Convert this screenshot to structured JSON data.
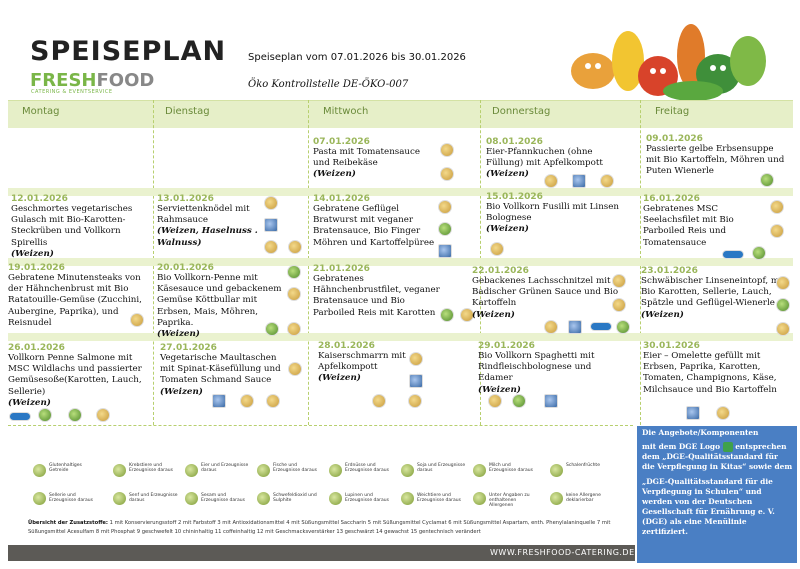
{
  "header": {
    "title": "SPEISEPLAN",
    "brand_fresh": "FRESH",
    "brand_food": "FOOD",
    "brand_sub": "CATERING & EVENTSERVICE",
    "period": "Speiseplan vom 07.01.2026 bis 30.01.2026",
    "eco": "Öko Kontrollstelle DE-ÖKO-007"
  },
  "days": [
    "Montag",
    "Dienstag",
    "Mittwoch",
    "Donnerstag",
    "Freitag"
  ],
  "week1": {
    "wed": {
      "date": "07.01.2026",
      "text": "Pasta mit Tomatensauce und Reibekäse",
      "tag": "(Weizen)"
    },
    "thu": {
      "date": "08.01.2026",
      "text": "Eier-Pfannkuchen (ohne Füllung) mit Apfelkompott",
      "tag": "(Weizen)"
    },
    "fri": {
      "date": "09.01.2026",
      "text": "Passierte gelbe Erbsensuppe mit Bio Kartoffeln, Möhren und  Puten Wienerle",
      "tag": ""
    }
  },
  "week2": {
    "mon": {
      "date": "12.01.2026",
      "text": "Geschmortes vegetarisches Gulasch mit Bio-Karotten-Steckrüben und Vollkorn Spirellis",
      "tag": "(Weizen)"
    },
    "tue": {
      "date": "13.01.2026",
      "text": "Serviettenknödel mit Rahmsauce",
      "tag": "(Weizen, Haselnuss . Walnuss)"
    },
    "wed": {
      "date": "14.01.2026",
      "text": "Gebratene Geflügel Bratwurst mit veganer Bratensauce, Bio Finger Möhren und Kartoffelpüree",
      "tag": ""
    },
    "thu": {
      "date": "15.01.2026",
      "text": "Bio Vollkorn Fusilli mit Linsen Bolognese",
      "tag": "(Weizen)"
    },
    "fri": {
      "date": "16.01.2026",
      "text": "Gebratenes MSC Seelachsfilet mit Bio Parboiled Reis und Tomatensauce",
      "tag": ""
    }
  },
  "week3": {
    "mon": {
      "date": "19.01.2026",
      "text": "Gebratene Minutensteaks von der Hähnchenbrust mit Bio Ratatouille-Gemüse (Zucchini, Aubergine, Paprika),  und Reisnudel",
      "tag": ""
    },
    "tue": {
      "date": "20.01.2026",
      "text": "Bio Vollkorn-Penne mit Käsesauce und gebackenem Gemüse Köttbullar mit Erbsen, Mais, Möhren, Paprika.",
      "tag": "(Weizen)"
    },
    "wed": {
      "date": "21.01.2026",
      "text": "Gebratenes  Hähnchenbrustfilet, veganer Bratensauce und Bio Parboiled Reis mit  Karotten",
      "tag": ""
    },
    "thu": {
      "date": "22.01.2026",
      "text": "Gebackenes  Lachsschnitzel mit Badischer Grünen Sauce und Bio Kartoffeln",
      "tag": "(Weizen)"
    },
    "fri": {
      "date": "23.01.2026",
      "text": "Schwäbischer Linseneintopf, mit Bio Karotten, Sellerie, Lauch, Spätzle und Geflügel-Wienerle",
      "tag": "(Weizen)"
    }
  },
  "week4": {
    "mon": {
      "date": "26.01.2026",
      "text": "Vollkorn Penne Salmone mit MSC Wildlachs und passierter Gemüsesoße(Karotten, Lauch, Sellerie)",
      "tag": "(Weizen)"
    },
    "tue": {
      "date": "27.01.2026",
      "text": "Vegetarische Maultaschen mit Spinat-Käsefüllung und Tomaten Schmand Sauce",
      "tag": "(Weizen)"
    },
    "wed": {
      "date": "28.01.2026",
      "text": "Kaiserschmarrn mit Apfelkompott",
      "tag": "(Weizen)"
    },
    "thu": {
      "date": "29.01.2026",
      "text": "Bio  Vollkorn Spaghetti mit Rindfleischbolognese und Edamer",
      "tag": "(Weizen)"
    },
    "fri": {
      "date": "30.01.2026",
      "text": "Eier – Omelette gefüllt mit Erbsen, Paprika, Karotten, Tomaten, Champignons, Käse, Milchsauce und Bio Kartoffeln",
      "tag": ""
    }
  },
  "legend": [
    "Glutenhaltiges Getreide",
    "Krebstiere und Erzeugnisse daraus",
    "Eier und Erzeugnisse daraus",
    "Fische und Erzeugnisse daraus",
    "Erdnüsse und Erzeugnisse daraus",
    "Soja und Erzeugnisse daraus",
    "Milch und Erzeugnisse daraus",
    "Schalenfrüchte",
    "Sellerie und Erzeugnisse daraus",
    "Senf und Erzeugnisse daraus",
    "Sesam und Erzeugnisse daraus",
    "Schwefeldioxid und Sulphite",
    "Lupinen und Erzeugnisse daraus",
    "Weichtiere und Erzeugnisse daraus",
    "Unter Angaben zu enthaltenen Allergenen",
    "keine Allergene deklarierbar"
  ],
  "additives": {
    "label": "Übersicht der Zusatzstoffe:",
    "text": "1 mit Konservierungsstoff 2 mit Farbstoff 3 mit Antioxidationsmittel 4 mit Süßungsmittel Saccharin 5 mit Süßungsmittel Cyclamat 6 mit Süßungsmittel Aspartam, enth. Phenylalaninquelle 7 mit Süßungsmittel Acesulfam 8 mit Phosphat 9 geschwefelt 10 chininhaltig 11 coffeinhaltig 12 mit Geschmacksverstärker 13 geschwärzt 14 gewachst 15 gentechnisch verändert"
  },
  "footer": {
    "url": "WWW.FRESHFOOD-CATERING.DE"
  },
  "dge": {
    "line1": "Die Angebote/Komponenten",
    "line2a": "mit dem DGE Logo",
    "line2b": "entsprechen dem „DGE-Qualitätsstandard für die Verpflegung in Kitas“ sowie  dem",
    "line3": "„DGE-Qualitätsstandard für die Verpflegung in Schulen“ und werden von der Deutschen Gesellschaft für Ernährung e. V. (DGE) als eine Menülinie zertifiziert."
  },
  "colors": {
    "accent_green": "#7ab648",
    "day_bar": "#e6efc8",
    "dge_blue": "#4a7fc4",
    "footer": "#5c5a56"
  }
}
